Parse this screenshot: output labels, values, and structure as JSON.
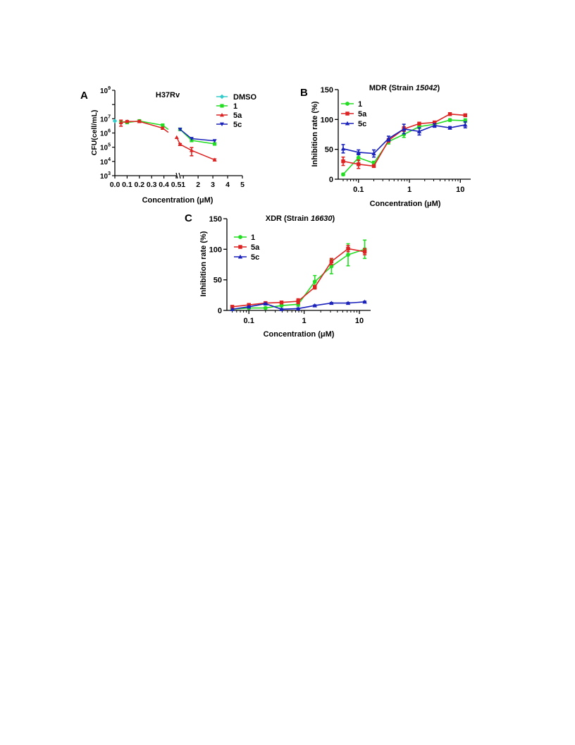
{
  "chart_data": [
    {
      "panel": "A",
      "type": "line",
      "title": "H37Rv",
      "xlabel": "Concentration (μM)",
      "ylabel": "CFU(cell/mL)",
      "yscale": "log",
      "ylim": [
        1000,
        1000000000
      ],
      "y_ticks": [
        {
          "value": 1000,
          "base": "10",
          "exp": "3"
        },
        {
          "value": 10000,
          "base": "10",
          "exp": "4"
        },
        {
          "value": 100000,
          "base": "10",
          "exp": "5"
        },
        {
          "value": 1000000,
          "base": "10",
          "exp": "6"
        },
        {
          "value": 10000000,
          "base": "10",
          "exp": "7"
        },
        {
          "value": 1000000000,
          "base": "10",
          "exp": "9"
        }
      ],
      "x_ticks_left": [
        "0.0",
        "0.1",
        "0.2",
        "0.3",
        "0.4",
        "0.5"
      ],
      "x_ticks_right": [
        "1",
        "2",
        "3",
        "4",
        "5"
      ],
      "x_break": [
        0.5,
        0.8
      ],
      "legend": "top-right",
      "series": [
        {
          "name": "DMSO",
          "color": "#33cccc",
          "marker": "diamond",
          "points": [
            {
              "x": 0,
              "y": 7000000
            }
          ]
        },
        {
          "name": "1",
          "color": "#22dd22",
          "marker": "square",
          "points": [
            {
              "x": 0.05,
              "y": 6000000
            },
            {
              "x": 0.1,
              "y": 5500000
            },
            {
              "x": 0.2,
              "y": 7000000
            },
            {
              "x": 0.39,
              "y": 3500000
            },
            {
              "x": 0.78,
              "y": 1800000
            },
            {
              "x": 1.56,
              "y": 300000
            },
            {
              "x": 3.12,
              "y": 170000
            }
          ]
        },
        {
          "name": "5a",
          "color": "#dd2222",
          "marker": "triangle",
          "points": [
            {
              "x": 0.05,
              "y": 5500000
            },
            {
              "x": 0.1,
              "y": 6500000
            },
            {
              "x": 0.2,
              "y": 6500000
            },
            {
              "x": 0.39,
              "y": 2200000
            },
            {
              "x": 0.55,
              "y": 500000
            },
            {
              "x": 0.78,
              "y": 160000
            },
            {
              "x": 1.56,
              "y": 60000
            },
            {
              "x": 3.12,
              "y": 13000
            }
          ],
          "error": [
            2500000,
            1000000,
            1000000,
            300000,
            0,
            20000,
            35000,
            2000
          ]
        },
        {
          "name": "5c",
          "color": "#1a22bb",
          "marker": "triangle-down",
          "points": [
            {
              "x": 0.78,
              "y": 1800000
            },
            {
              "x": 1.56,
              "y": 400000
            },
            {
              "x": 3.12,
              "y": 280000
            }
          ]
        }
      ]
    },
    {
      "panel": "B",
      "type": "line",
      "title_prefix": "MDR (Strain ",
      "title_italic": "15042",
      "title_suffix": ")",
      "xlabel": "Concentration (μM)",
      "ylabel": "Inhibition rate (%)",
      "xscale": "log",
      "xlim": [
        0.04,
        16
      ],
      "ylim": [
        0,
        150
      ],
      "x_ticks": [
        0.1,
        1,
        10
      ],
      "x_tick_labels": [
        "0.1",
        "1",
        "10"
      ],
      "y_ticks": [
        0,
        50,
        100,
        150
      ],
      "y_tick_labels": [
        "0",
        "50",
        "100",
        "150"
      ],
      "x": [
        0.05,
        0.1,
        0.2,
        0.39,
        0.78,
        1.56,
        3.12,
        6.25,
        12.5
      ],
      "legend": "top-left",
      "series": [
        {
          "name": "1",
          "color": "#22dd22",
          "marker": "circle",
          "values": [
            8,
            36,
            27,
            63,
            75,
            88,
            92,
            99,
            98
          ],
          "error": [
            2,
            5,
            3,
            4,
            5,
            3,
            3,
            2,
            3
          ]
        },
        {
          "name": "5a",
          "color": "#dd2222",
          "marker": "square",
          "values": [
            30,
            25,
            22,
            65,
            84,
            93,
            95,
            109,
            107
          ],
          "error": [
            7,
            7,
            2,
            3,
            4,
            2,
            2,
            1,
            2
          ]
        },
        {
          "name": "5c",
          "color": "#1a22bb",
          "marker": "triangle",
          "values": [
            51,
            45,
            43,
            68,
            84,
            80,
            90,
            86,
            91
          ],
          "error": [
            7,
            4,
            6,
            4,
            8,
            6,
            3,
            2,
            5
          ]
        }
      ]
    },
    {
      "panel": "C",
      "type": "line",
      "title_prefix": "XDR (Strain ",
      "title_italic": "16630",
      "title_suffix": ")",
      "xlabel": "Concentration (μM)",
      "ylabel": "Inhibition rate (%)",
      "xscale": "log",
      "xlim": [
        0.04,
        16
      ],
      "ylim": [
        0,
        150
      ],
      "x_ticks": [
        0.1,
        1,
        10
      ],
      "x_tick_labels": [
        "0.1",
        "1",
        "10"
      ],
      "y_ticks": [
        0,
        50,
        100,
        150
      ],
      "y_tick_labels": [
        "0",
        "50",
        "100",
        "150"
      ],
      "x": [
        0.05,
        0.1,
        0.2,
        0.39,
        0.78,
        1.56,
        3.12,
        6.25,
        12.5
      ],
      "legend": "top-left",
      "series": [
        {
          "name": "1",
          "color": "#22dd22",
          "marker": "circle",
          "values": [
            2,
            4,
            4,
            8,
            10,
            47,
            72,
            91,
            100
          ],
          "error": [
            0,
            1,
            1,
            2,
            3,
            10,
            12,
            18,
            15
          ]
        },
        {
          "name": "5a",
          "color": "#dd2222",
          "marker": "square",
          "values": [
            6,
            9,
            12,
            13,
            15,
            38,
            80,
            101,
            96
          ],
          "error": [
            1,
            1,
            1,
            2,
            4,
            3,
            5,
            5,
            5
          ]
        },
        {
          "name": "5c",
          "color": "#1a22bb",
          "marker": "triangle",
          "values": [
            2,
            6,
            11,
            2,
            3,
            8,
            12,
            12,
            14
          ],
          "error": [
            0,
            1,
            1,
            1,
            1,
            1,
            1,
            1,
            1
          ]
        }
      ]
    }
  ]
}
